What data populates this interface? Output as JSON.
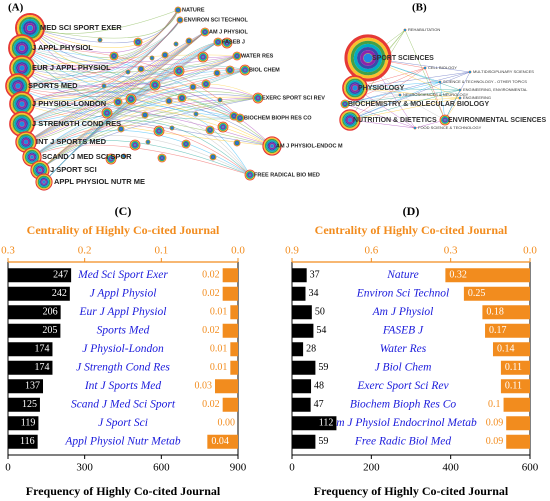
{
  "networks": [
    {
      "label": "(A)",
      "nodes": [
        "MED SCI SPORT EXER",
        "J APPL PHYSIOL",
        "EUR J APPL PHYSIOL",
        "SPORTS MED",
        "J PHYSIOL-LONDON",
        "J STRENGTH COND RES",
        "INT J SPORTS MED",
        "SCAND J MED SCI SPOR",
        "J SPORT SCI",
        "APPL PHYSIOL NUTR ME",
        "NATURE",
        "ENVIRON SCI TECHNOL",
        "AM J PHYSIOL",
        "FASEB J",
        "WATER RES",
        "BIOL CHEM",
        "EXERC SPORT SCI REV",
        "BIOCHEM BIOPH RES CO",
        "AM J PHYSIOL-ENDOC M",
        "FREE RADICAL BIO MED"
      ]
    },
    {
      "label": "(B)",
      "nodes": [
        "SPORT SCIENCES",
        "PHYSIOLOGY",
        "BIOCHEMISTRY & MOLECULAR BIOLOGY",
        "NUTRITION & DIETETICS",
        "ENVIRONMENTAL SCIENCES",
        "REHABILITATION",
        "CELL BIOLOGY",
        "MULTIDISCIPLINARY SCIENCES",
        "SCIENCE & TECHNOLOGY - OTHER TOPICS",
        "ENGINEERING",
        "NEUROSCIENCES & NEUROLOGY",
        "FOOD SCIENCE & TECHNOLOGY",
        "ENGINEERING, ENVIRONMENTAL"
      ]
    }
  ],
  "chart_data": [
    {
      "type": "bar",
      "label": "(C)",
      "x2label": "Centrality of Highly Co-cited Journal",
      "xlabel": "Frequency of Highly Co-cited Journal",
      "categories": [
        "Med Sci Sport Exer",
        "J Appl Physiol",
        "Eur J Appl Physiol",
        "Sports Med",
        "J Physiol-London",
        "J Strength Cond Res",
        "Int J Sports Med",
        "Scand J Med Sci Sport",
        "J Sport Sci",
        "Appl Physiol Nutr Metab"
      ],
      "series": [
        {
          "color": "#000000",
          "axis": "x",
          "values": [
            247,
            242,
            206,
            205,
            174,
            174,
            137,
            125,
            119,
            116
          ]
        },
        {
          "color": "#f28c1e",
          "axis": "x2",
          "values": [
            0.02,
            0.02,
            0.01,
            0.02,
            0.01,
            0.01,
            0.03,
            0.02,
            0,
            0.04
          ],
          "value_labels": [
            "0.02",
            "0.02",
            "0.01",
            "0.02",
            "0.01",
            "0.01",
            "0.03",
            "0.02",
            "0.00",
            "0.04"
          ]
        }
      ],
      "xlim": [
        0,
        900
      ],
      "xticks": [
        0,
        300,
        600,
        900
      ],
      "x2lim": [
        0.3,
        0
      ],
      "x2ticks": [
        0.3,
        0.2,
        0.1,
        {
          "value": 0,
          "label": "0.0"
        }
      ]
    },
    {
      "type": "bar",
      "label": "(D)",
      "x2label": "Centrality of Highly Co-cited Journal",
      "xlabel": "Frequency of Highly Co-cited Journal",
      "categories": [
        "Nature",
        "Environ Sci Technol",
        "Am J Physiol",
        "FASEB J",
        "Water Res",
        "J Biol Chem",
        "Exerc Sport Sci Rev",
        "Biochem Bioph Res Co",
        "Am J Physiol Endocrinol Metab",
        "Free Radic Biol Med"
      ],
      "series": [
        {
          "color": "#000000",
          "axis": "x",
          "values": [
            37,
            34,
            50,
            54,
            28,
            59,
            48,
            47,
            112,
            59
          ]
        },
        {
          "color": "#f28c1e",
          "axis": "x2",
          "values": [
            0.32,
            0.25,
            0.18,
            0.17,
            0.14,
            0.11,
            0.11,
            0.1,
            0.09,
            0.09
          ]
        }
      ],
      "xlim": [
        0,
        600
      ],
      "xticks": [
        0,
        200,
        400,
        600
      ],
      "x2lim": [
        0.9,
        0
      ],
      "x2ticks": [
        0.9,
        0.6,
        0.3,
        {
          "value": 0,
          "label": "0.0"
        }
      ]
    }
  ]
}
